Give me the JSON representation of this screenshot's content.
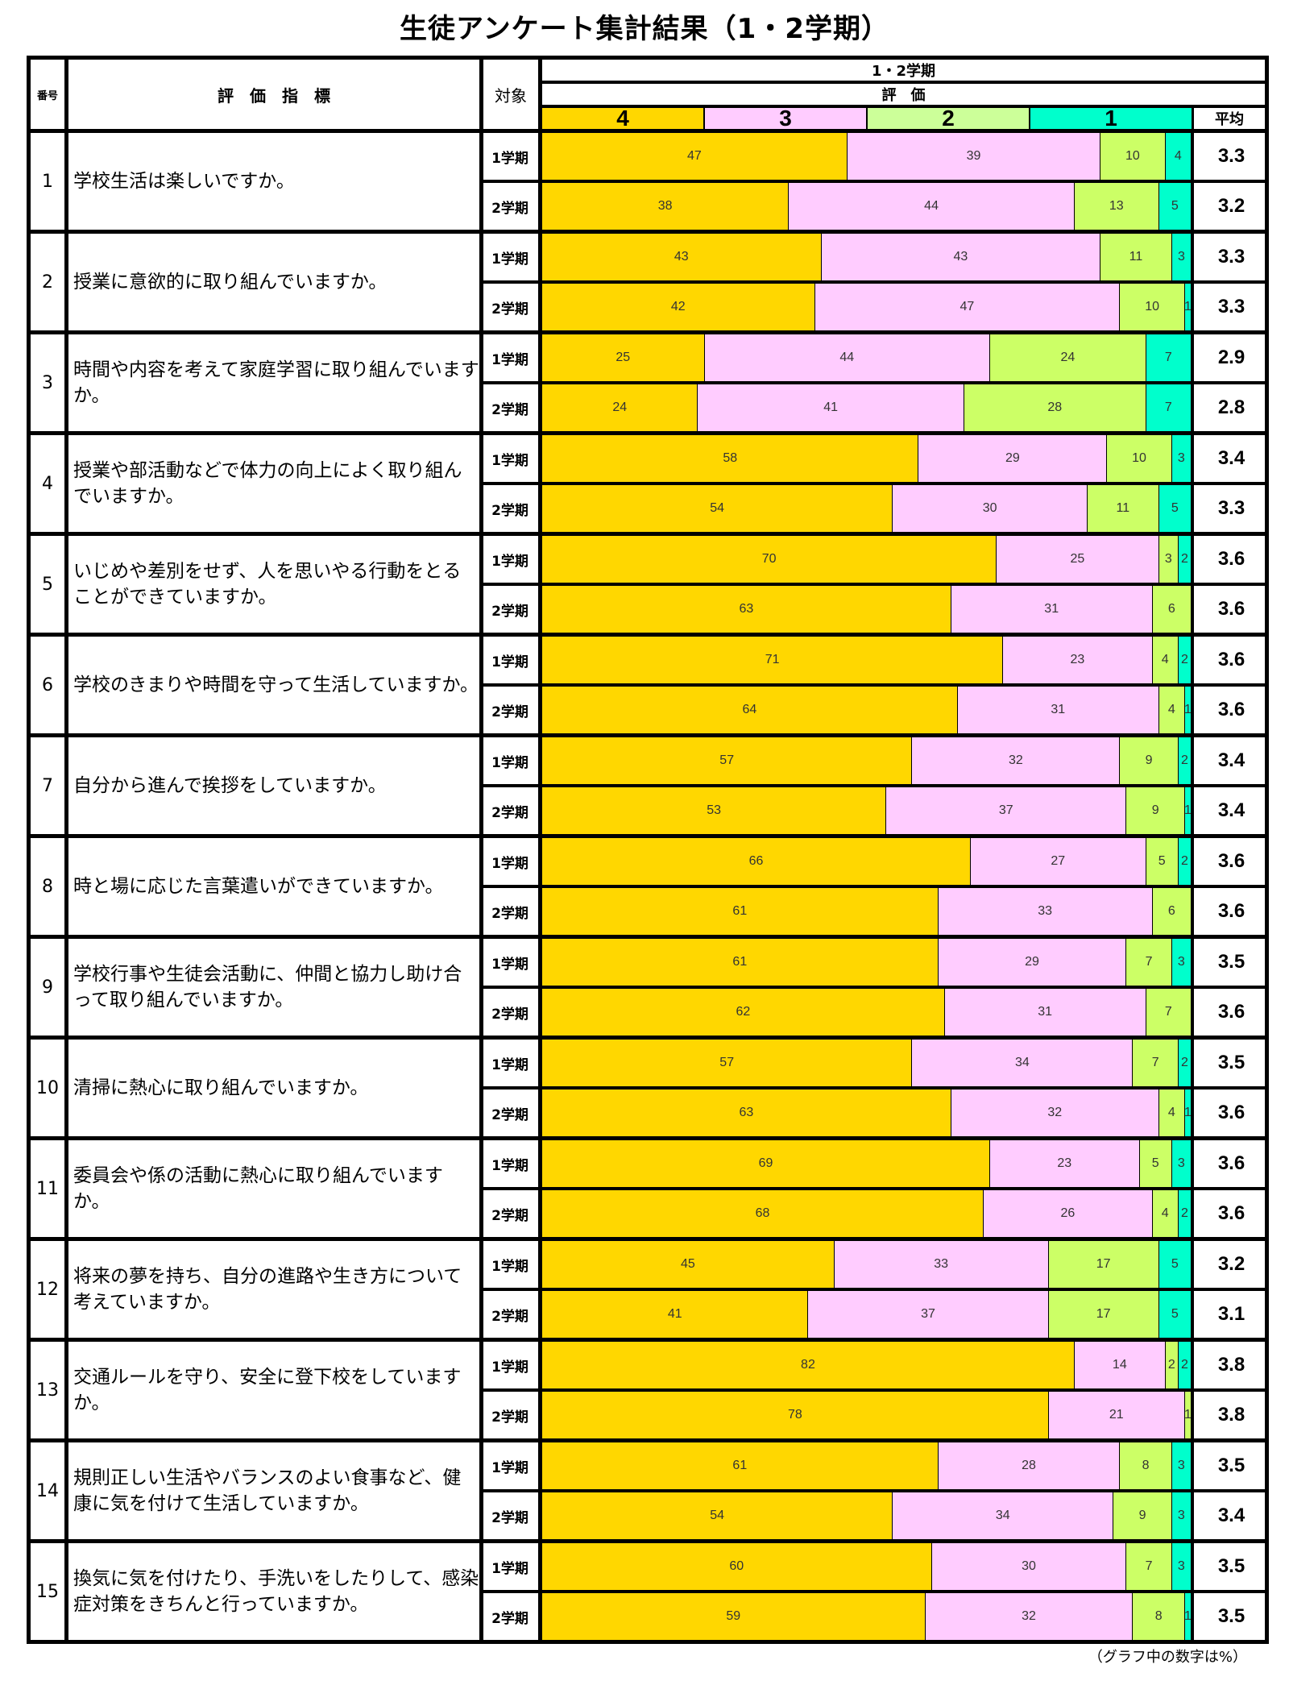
{
  "title": "生徒アンケート集計結果（1・2学期）",
  "header": {
    "number": "番号",
    "indicator": "評　価　指　標",
    "target": "対象",
    "period": "1・2学期",
    "evaluation": "評　価",
    "levels": [
      "4",
      "3",
      "2",
      "1"
    ],
    "average": "平均"
  },
  "colors": {
    "level4": "#FFD700",
    "level3": "#FFCCFF",
    "level2": "#CCFF66",
    "level2_legend": "#CCFF99",
    "level1": "#00FFCC"
  },
  "terms": [
    "1学期",
    "2学期"
  ],
  "note": "（グラフ中の数字は%）",
  "items": [
    {
      "no": "1",
      "question": "学校生活は楽しいですか。",
      "rows": [
        {
          "term": "1学期",
          "values": [
            47,
            39,
            10,
            4
          ],
          "avg": "3.3"
        },
        {
          "term": "2学期",
          "values": [
            38,
            44,
            13,
            5
          ],
          "avg": "3.2"
        }
      ]
    },
    {
      "no": "2",
      "question": "授業に意欲的に取り組んでいますか。",
      "rows": [
        {
          "term": "1学期",
          "values": [
            43,
            43,
            11,
            3
          ],
          "avg": "3.3"
        },
        {
          "term": "2学期",
          "values": [
            42,
            47,
            10,
            1
          ],
          "avg": "3.3"
        }
      ]
    },
    {
      "no": "3",
      "question": "時間や内容を考えて家庭学習に取り組んでいますか。",
      "rows": [
        {
          "term": "1学期",
          "values": [
            25,
            44,
            24,
            7
          ],
          "avg": "2.9"
        },
        {
          "term": "2学期",
          "values": [
            24,
            41,
            28,
            7
          ],
          "avg": "2.8"
        }
      ]
    },
    {
      "no": "4",
      "question": "授業や部活動などで体力の向上によく取り組んでいますか。",
      "rows": [
        {
          "term": "1学期",
          "values": [
            58,
            29,
            10,
            3
          ],
          "avg": "3.4"
        },
        {
          "term": "2学期",
          "values": [
            54,
            30,
            11,
            5
          ],
          "avg": "3.3"
        }
      ]
    },
    {
      "no": "5",
      "question": "いじめや差別をせず、人を思いやる行動をとることができていますか。",
      "rows": [
        {
          "term": "1学期",
          "values": [
            70,
            25,
            3,
            2
          ],
          "avg": "3.6"
        },
        {
          "term": "2学期",
          "values": [
            63,
            31,
            6,
            0
          ],
          "avg": "3.6"
        }
      ]
    },
    {
      "no": "6",
      "question": "学校のきまりや時間を守って生活していますか。",
      "rows": [
        {
          "term": "1学期",
          "values": [
            71,
            23,
            4,
            2
          ],
          "avg": "3.6"
        },
        {
          "term": "2学期",
          "values": [
            64,
            31,
            4,
            1
          ],
          "avg": "3.6"
        }
      ]
    },
    {
      "no": "7",
      "question": "自分から進んで挨拶をしていますか。",
      "rows": [
        {
          "term": "1学期",
          "values": [
            57,
            32,
            9,
            2
          ],
          "avg": "3.4"
        },
        {
          "term": "2学期",
          "values": [
            53,
            37,
            9,
            1
          ],
          "avg": "3.4"
        }
      ]
    },
    {
      "no": "8",
      "question": "時と場に応じた言葉遣いができていますか。",
      "rows": [
        {
          "term": "1学期",
          "values": [
            66,
            27,
            5,
            2
          ],
          "avg": "3.6"
        },
        {
          "term": "2学期",
          "values": [
            61,
            33,
            6,
            0
          ],
          "avg": "3.6"
        }
      ]
    },
    {
      "no": "9",
      "question": "学校行事や生徒会活動に、仲間と協力し助け合って取り組んでいますか。",
      "rows": [
        {
          "term": "1学期",
          "values": [
            61,
            29,
            7,
            3
          ],
          "avg": "3.5"
        },
        {
          "term": "2学期",
          "values": [
            62,
            31,
            7,
            0
          ],
          "avg": "3.6"
        }
      ]
    },
    {
      "no": "10",
      "question": "清掃に熱心に取り組んでいますか。",
      "rows": [
        {
          "term": "1学期",
          "values": [
            57,
            34,
            7,
            2
          ],
          "avg": "3.5"
        },
        {
          "term": "2学期",
          "values": [
            63,
            32,
            4,
            1
          ],
          "avg": "3.6"
        }
      ]
    },
    {
      "no": "11",
      "question": "委員会や係の活動に熱心に取り組んでいますか。",
      "rows": [
        {
          "term": "1学期",
          "values": [
            69,
            23,
            5,
            3
          ],
          "avg": "3.6"
        },
        {
          "term": "2学期",
          "values": [
            68,
            26,
            4,
            2
          ],
          "avg": "3.6"
        }
      ]
    },
    {
      "no": "12",
      "question": "将来の夢を持ち、自分の進路や生き方について考えていますか。",
      "rows": [
        {
          "term": "1学期",
          "values": [
            45,
            33,
            17,
            5
          ],
          "avg": "3.2"
        },
        {
          "term": "2学期",
          "values": [
            41,
            37,
            17,
            5
          ],
          "avg": "3.1"
        }
      ]
    },
    {
      "no": "13",
      "question": "交通ルールを守り、安全に登下校をしていますか。",
      "rows": [
        {
          "term": "1学期",
          "values": [
            82,
            14,
            2,
            2
          ],
          "avg": "3.8"
        },
        {
          "term": "2学期",
          "values": [
            78,
            21,
            1,
            0
          ],
          "avg": "3.8"
        }
      ]
    },
    {
      "no": "14",
      "question": "規則正しい生活やバランスのよい食事など、健康に気を付けて生活していますか。",
      "rows": [
        {
          "term": "1学期",
          "values": [
            61,
            28,
            8,
            3
          ],
          "avg": "3.5"
        },
        {
          "term": "2学期",
          "values": [
            54,
            34,
            9,
            3
          ],
          "avg": "3.4"
        }
      ]
    },
    {
      "no": "15",
      "question": "換気に気を付けたり、手洗いをしたりして、感染症対策をきちんと行っていますか。",
      "rows": [
        {
          "term": "1学期",
          "values": [
            60,
            30,
            7,
            3
          ],
          "avg": "3.5"
        },
        {
          "term": "2学期",
          "values": [
            59,
            32,
            8,
            1
          ],
          "avg": "3.5"
        }
      ]
    }
  ],
  "chart_data": {
    "type": "bar",
    "orientation": "horizontal-stacked-100",
    "title": "生徒アンケート集計結果（1・2学期）",
    "unit_note": "（グラフ中の数字は%）",
    "legend": [
      "4",
      "3",
      "2",
      "1"
    ],
    "categories": [
      "1 1学期",
      "1 2学期",
      "2 1学期",
      "2 2学期",
      "3 1学期",
      "3 2学期",
      "4 1学期",
      "4 2学期",
      "5 1学期",
      "5 2学期",
      "6 1学期",
      "6 2学期",
      "7 1学期",
      "7 2学期",
      "8 1学期",
      "8 2学期",
      "9 1学期",
      "9 2学期",
      "10 1学期",
      "10 2学期",
      "11 1学期",
      "11 2学期",
      "12 1学期",
      "12 2学期",
      "13 1学期",
      "13 2学期",
      "14 1学期",
      "14 2学期",
      "15 1学期",
      "15 2学期"
    ],
    "series": [
      {
        "name": "4",
        "color": "#FFD700",
        "values": [
          47,
          38,
          43,
          42,
          25,
          24,
          58,
          54,
          70,
          63,
          71,
          64,
          57,
          53,
          66,
          61,
          61,
          62,
          57,
          63,
          69,
          68,
          45,
          41,
          82,
          78,
          61,
          54,
          60,
          59
        ]
      },
      {
        "name": "3",
        "color": "#FFCCFF",
        "values": [
          39,
          44,
          43,
          47,
          44,
          41,
          29,
          30,
          25,
          31,
          23,
          31,
          32,
          37,
          27,
          33,
          29,
          31,
          34,
          32,
          23,
          26,
          33,
          37,
          14,
          21,
          28,
          34,
          30,
          32
        ]
      },
      {
        "name": "2",
        "color": "#CCFF66",
        "values": [
          10,
          13,
          11,
          10,
          24,
          28,
          10,
          11,
          3,
          6,
          4,
          4,
          9,
          9,
          5,
          6,
          7,
          7,
          7,
          4,
          5,
          4,
          17,
          17,
          2,
          1,
          8,
          9,
          7,
          8
        ]
      },
      {
        "name": "1",
        "color": "#00FFCC",
        "values": [
          4,
          5,
          3,
          1,
          7,
          7,
          3,
          5,
          2,
          0,
          2,
          1,
          2,
          1,
          2,
          0,
          3,
          0,
          2,
          1,
          3,
          2,
          5,
          5,
          2,
          0,
          3,
          3,
          3,
          1
        ]
      }
    ],
    "averages": [
      3.3,
      3.2,
      3.3,
      3.3,
      2.9,
      2.8,
      3.4,
      3.3,
      3.6,
      3.6,
      3.6,
      3.6,
      3.4,
      3.4,
      3.6,
      3.6,
      3.5,
      3.6,
      3.5,
      3.6,
      3.6,
      3.6,
      3.2,
      3.1,
      3.8,
      3.8,
      3.5,
      3.4,
      3.5,
      3.5
    ],
    "xlabel": "",
    "ylabel": "",
    "xlim": [
      0,
      100
    ],
    "grid": false,
    "legend_position": "top"
  }
}
